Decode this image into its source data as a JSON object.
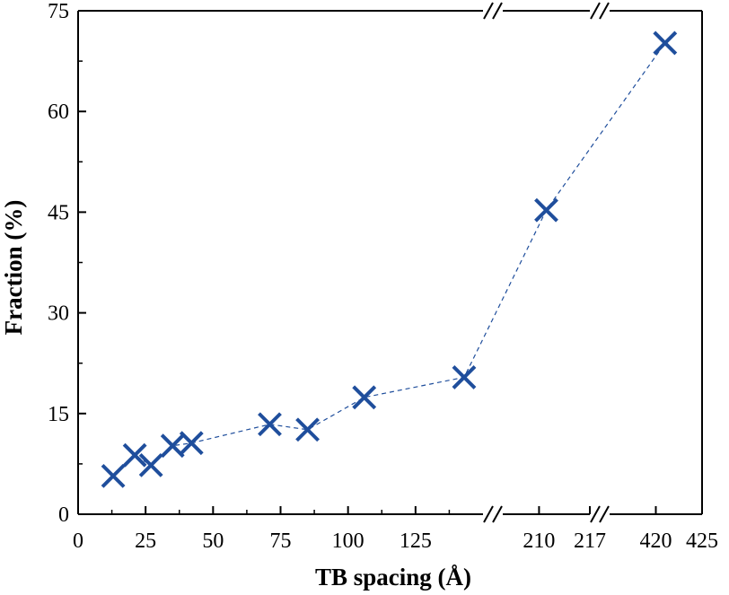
{
  "chart_data": {
    "type": "scatter",
    "xlabel": "TB spacing (Å)",
    "ylabel": "Fraction (%)",
    "ylim": [
      0,
      75
    ],
    "y_ticks": [
      0,
      15,
      30,
      45,
      60,
      75
    ],
    "x_axis_broken": true,
    "x_segments": [
      {
        "range": [
          0,
          150
        ],
        "ticks": [
          0,
          25,
          50,
          75,
          100,
          125
        ]
      },
      {
        "range": [
          205,
          217
        ],
        "ticks": [
          210,
          217
        ]
      },
      {
        "range": [
          415,
          425
        ],
        "ticks": [
          420,
          425
        ]
      }
    ],
    "series": [
      {
        "marker": "x",
        "line": "dashed",
        "color": "#1f4e9c",
        "x": [
          13,
          21,
          27,
          35,
          42,
          71,
          85,
          106,
          143,
          211,
          421
        ],
        "y": [
          5.7,
          8.8,
          7.3,
          10.2,
          10.6,
          13.4,
          12.6,
          17.4,
          20.4,
          45.3,
          70.2
        ]
      }
    ]
  }
}
